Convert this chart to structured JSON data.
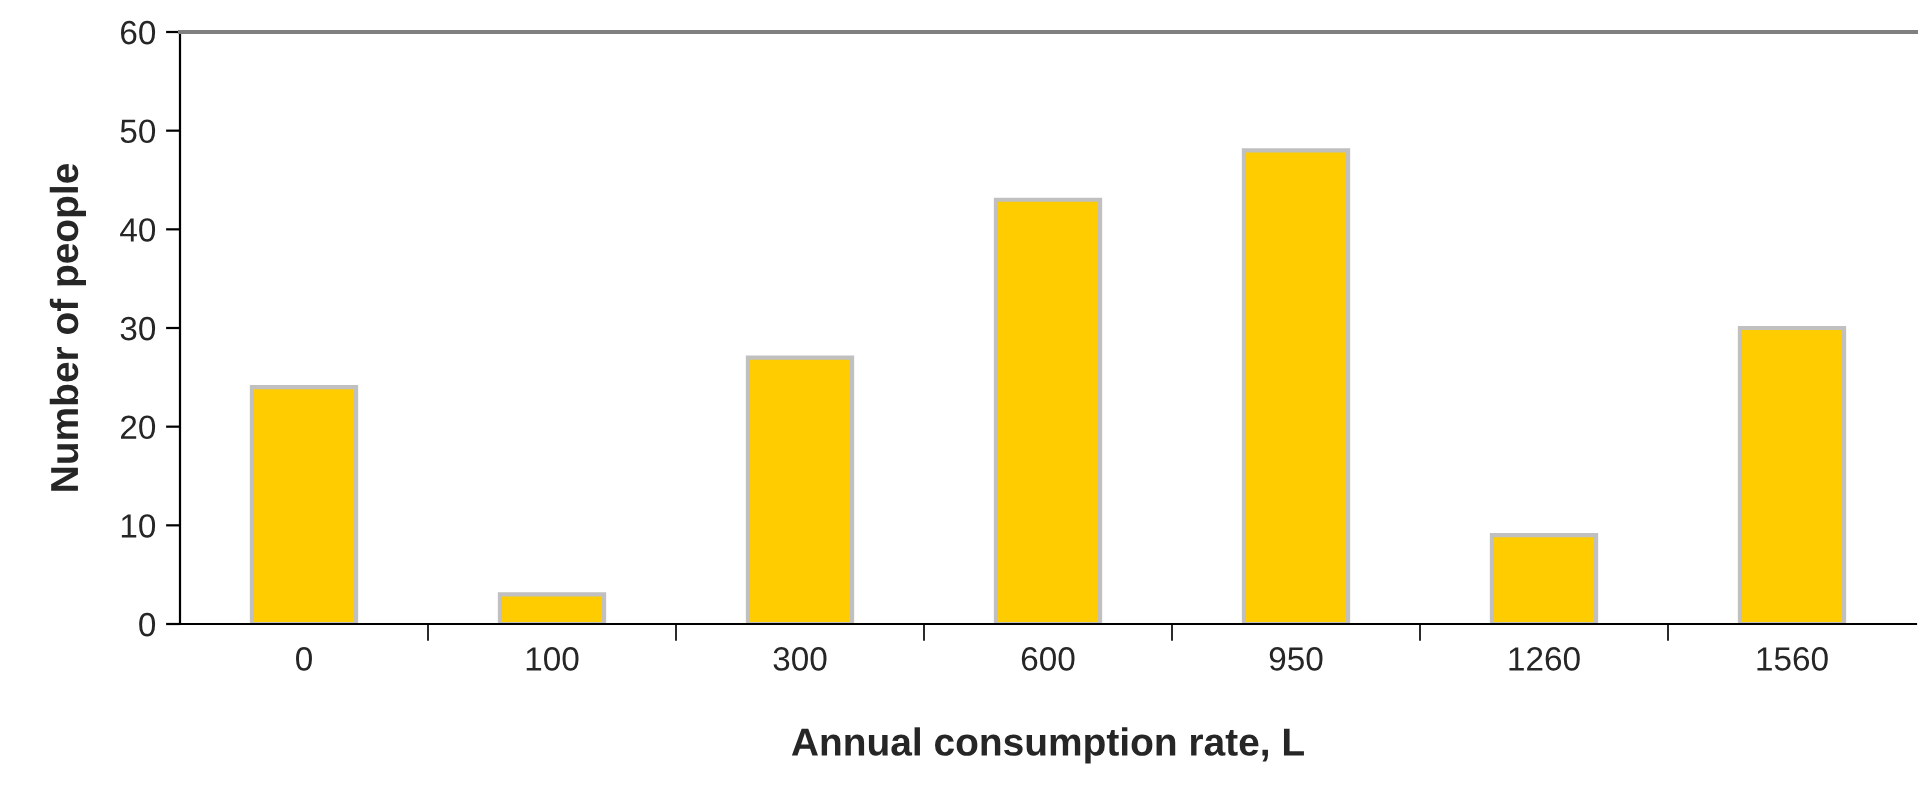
{
  "chart_data": {
    "type": "bar",
    "xlabel": "Annual consumption rate, L",
    "ylabel": "Number of people",
    "categories": [
      "0",
      "100",
      "300",
      "600",
      "950",
      "1260",
      "1560"
    ],
    "values": [
      24,
      3,
      27,
      43,
      48,
      9,
      30
    ],
    "color": "#ffcc00",
    "ylim": [
      0,
      60
    ],
    "yticks": [
      0,
      10,
      20,
      30,
      40,
      50,
      60
    ],
    "grid": false
  }
}
